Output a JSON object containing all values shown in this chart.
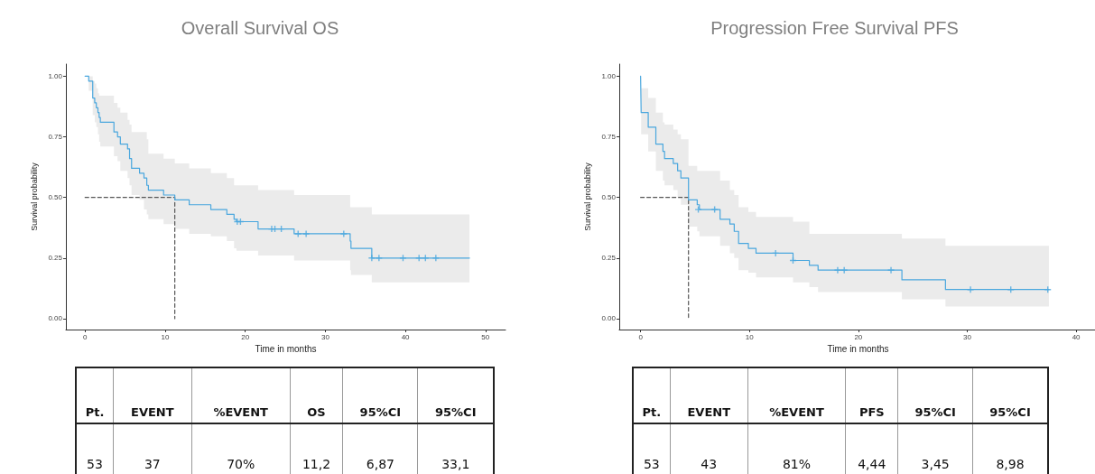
{
  "chart_data": [
    {
      "type": "step",
      "title": "Overall Survival OS",
      "xlabel": "Time in months",
      "ylabel": "Survival probability",
      "xlim": [
        -2.4,
        52.5
      ],
      "xticks": [
        0,
        10,
        20,
        30,
        40,
        50
      ],
      "ylim": [
        -0.045,
        1.05
      ],
      "yticks": [
        {
          "value": 0,
          "label": "0.00"
        },
        {
          "value": 0.25,
          "label": "0.25"
        },
        {
          "value": 0.5,
          "label": "0.50"
        },
        {
          "value": 0.75,
          "label": "0.75"
        },
        {
          "value": 1,
          "label": "1.00"
        }
      ],
      "series": [
        {
          "type": "step",
          "color": "#4aa7de",
          "x": [
            0,
            0.45,
            0.95,
            1.2,
            1.4,
            1.6,
            1.75,
            1.9,
            3.6,
            4.05,
            4.4,
            5.3,
            5.55,
            5.8,
            6.8,
            7.35,
            7.7,
            7.9,
            9.8,
            11.2,
            13.0,
            15.7,
            17.7,
            18.6,
            18.9,
            21.6,
            26.1,
            33.1,
            33.2,
            35.8,
            48
          ],
          "values": [
            1.0,
            0.98,
            0.91,
            0.89,
            0.87,
            0.85,
            0.83,
            0.81,
            0.77,
            0.75,
            0.72,
            0.7,
            0.66,
            0.62,
            0.6,
            0.58,
            0.55,
            0.53,
            0.51,
            0.49,
            0.47,
            0.45,
            0.43,
            0.41,
            0.4,
            0.37,
            0.35,
            0.32,
            0.29,
            0.25,
            0.25
          ],
          "lower": [
            1.0,
            0.94,
            0.84,
            0.81,
            0.79,
            0.76,
            0.73,
            0.71,
            0.67,
            0.65,
            0.61,
            0.58,
            0.55,
            0.51,
            0.49,
            0.45,
            0.43,
            0.41,
            0.39,
            0.37,
            0.35,
            0.34,
            0.32,
            0.29,
            0.28,
            0.26,
            0.24,
            0.2,
            0.18,
            0.15,
            0.15
          ],
          "upper": [
            1.0,
            1.0,
            0.98,
            0.97,
            0.95,
            0.93,
            0.92,
            0.92,
            0.89,
            0.87,
            0.85,
            0.82,
            0.8,
            0.77,
            0.77,
            0.77,
            0.74,
            0.68,
            0.66,
            0.64,
            0.62,
            0.6,
            0.58,
            0.55,
            0.55,
            0.53,
            0.51,
            0.46,
            0.46,
            0.43,
            0.43
          ]
        },
        {
          "type": "scatter",
          "color": "#4aa7de",
          "marker": "cross",
          "x": [
            19.0,
            19.4,
            23.3,
            23.7,
            24.5,
            26.6,
            27.6,
            32.3,
            35.8,
            36.7,
            39.7,
            41.7,
            42.5,
            43.8
          ],
          "values": [
            0.4,
            0.4,
            0.37,
            0.37,
            0.37,
            0.35,
            0.35,
            0.35,
            0.25,
            0.25,
            0.25,
            0.25,
            0.25,
            0.25
          ]
        },
        {
          "type": "line",
          "color": "#555555",
          "line_style": "dashed",
          "x": [
            0,
            11.2,
            11.2
          ],
          "values": [
            0.5,
            0.5,
            0
          ]
        }
      ]
    },
    {
      "type": "step",
      "title": "Progression Free Survival PFS",
      "xlabel": "Time in months",
      "ylabel": "Survival probability",
      "xlim": [
        -1.96,
        41.9
      ],
      "xticks": [
        0,
        10,
        20,
        30,
        40
      ],
      "ylim": [
        -0.045,
        1.05
      ],
      "yticks": [
        {
          "value": 0,
          "label": "0.00"
        },
        {
          "value": 0.25,
          "label": "0.25"
        },
        {
          "value": 0.5,
          "label": "0.50"
        },
        {
          "value": 0.75,
          "label": "0.75"
        },
        {
          "value": 1,
          "label": "1.00"
        }
      ],
      "series": [
        {
          "type": "step",
          "color": "#4aa7de",
          "x": [
            0,
            0.05,
            0.7,
            1.4,
            2.05,
            2.2,
            3.0,
            3.4,
            3.7,
            4.4,
            5.2,
            5.4,
            7.3,
            8.2,
            8.6,
            9.0,
            9.9,
            10.6,
            14.0,
            15.5,
            16.3,
            24.0,
            28.0,
            37.5
          ],
          "values": [
            1.0,
            0.85,
            0.79,
            0.72,
            0.69,
            0.66,
            0.64,
            0.61,
            0.58,
            0.49,
            0.47,
            0.45,
            0.41,
            0.39,
            0.36,
            0.31,
            0.29,
            0.27,
            0.24,
            0.22,
            0.2,
            0.16,
            0.12,
            0.12
          ],
          "lower": [
            1.0,
            0.76,
            0.69,
            0.61,
            0.57,
            0.55,
            0.53,
            0.5,
            0.47,
            0.38,
            0.36,
            0.34,
            0.3,
            0.27,
            0.25,
            0.2,
            0.19,
            0.17,
            0.15,
            0.13,
            0.11,
            0.08,
            0.05,
            0.05
          ],
          "upper": [
            1.0,
            0.95,
            0.91,
            0.85,
            0.81,
            0.8,
            0.78,
            0.76,
            0.74,
            0.63,
            0.61,
            0.61,
            0.57,
            0.53,
            0.51,
            0.46,
            0.44,
            0.42,
            0.4,
            0.35,
            0.35,
            0.33,
            0.3,
            0.3
          ]
        },
        {
          "type": "scatter",
          "color": "#4aa7de",
          "marker": "cross",
          "x": [
            5.3,
            6.8,
            12.4,
            14.0,
            18.1,
            18.7,
            23.0,
            30.3,
            34.0,
            37.4
          ],
          "values": [
            0.45,
            0.45,
            0.27,
            0.24,
            0.2,
            0.2,
            0.2,
            0.12,
            0.12,
            0.12
          ]
        },
        {
          "type": "line",
          "color": "#555555",
          "line_style": "dashed",
          "x": [
            0,
            4.4,
            4.4
          ],
          "values": [
            0.5,
            0.5,
            0
          ]
        }
      ]
    },
    {
      "type": "other",
      "annotations": [
        "Pt.",
        "EVENT",
        "%EVENT",
        "OS",
        "95%CI",
        "95%CI",
        "53",
        "37",
        "70%",
        "11,2",
        "6,87",
        "33,1"
      ]
    },
    {
      "type": "other",
      "annotations": [
        "Pt.",
        "EVENT",
        "%EVENT",
        "PFS",
        "95%CI",
        "95%CI",
        "53",
        "43",
        "81%",
        "4,44",
        "3,45",
        "8,98"
      ]
    }
  ]
}
